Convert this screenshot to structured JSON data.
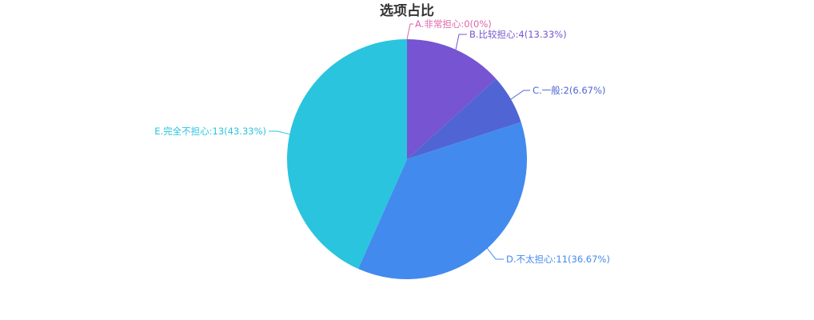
{
  "chart_data": {
    "type": "pie",
    "title": "选项占比",
    "slices": [
      {
        "name": "A.非常担心",
        "value": 0,
        "percent": "0%",
        "label": "A.非常担心:0(0%)",
        "color": "#e064a8"
      },
      {
        "name": "B.比较担心",
        "value": 4,
        "percent": "13.33%",
        "label": "B.比较担心:4(13.33%)",
        "color": "#7654d2"
      },
      {
        "name": "C.一般",
        "value": 2,
        "percent": "6.67%",
        "label": "C.一般:2(6.67%)",
        "color": "#5065d3"
      },
      {
        "name": "D.不太担心",
        "value": 11,
        "percent": "36.67%",
        "label": "D.不太担心:11(36.67%)",
        "color": "#428aee"
      },
      {
        "name": "E.完全不担心",
        "value": 13,
        "percent": "43.33%",
        "label": "E.完全不担心:13(43.33%)",
        "color": "#2ac4de"
      }
    ]
  }
}
